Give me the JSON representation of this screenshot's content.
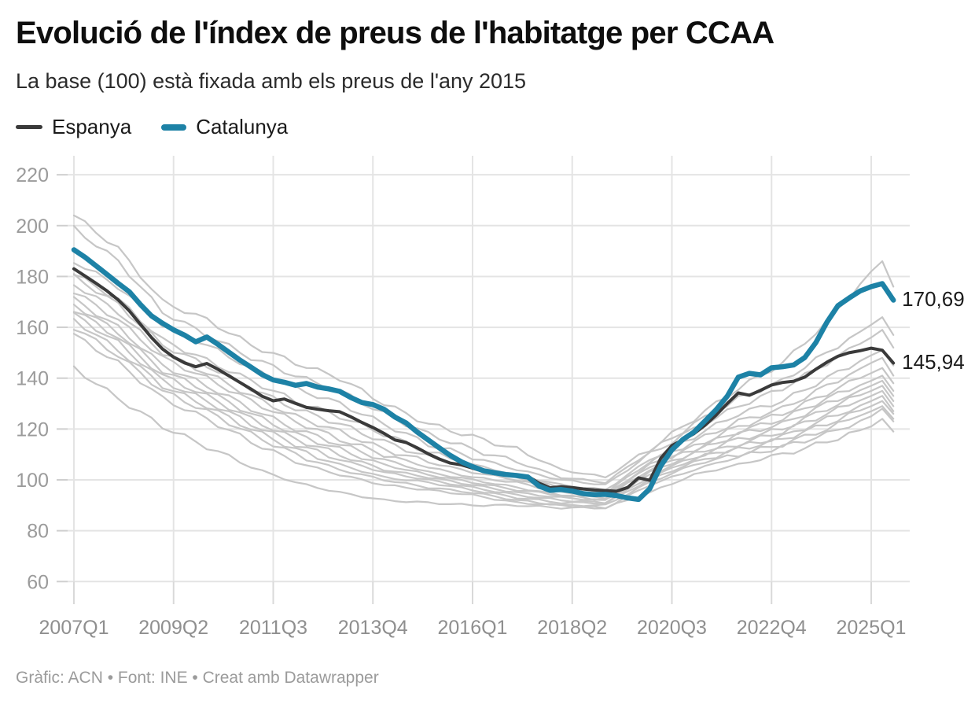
{
  "header": {
    "title": "Evolució de l'índex de preus de l'habitatge per CCAA",
    "subtitle": "La base (100) està fixada amb els preus de l'any 2015"
  },
  "legend": {
    "items": [
      {
        "label": "Espanya",
        "color": "#3a3a3a"
      },
      {
        "label": "Catalunya",
        "color": "#1d82a6"
      }
    ]
  },
  "footer": {
    "credit": "Gràfic: ACN • Font: INE • Creat amb Datawrapper"
  },
  "chart_data": {
    "type": "line",
    "x_start": "2007Q1",
    "x_end": "2025Q3",
    "frequency": "quarterly",
    "ylim": [
      55,
      225
    ],
    "grid": true,
    "y_ticks": [
      220,
      200,
      180,
      160,
      140,
      120,
      100,
      80,
      60
    ],
    "x_ticks": [
      {
        "label": "2007Q1",
        "q": 0
      },
      {
        "label": "2009Q2",
        "q": 9
      },
      {
        "label": "2011Q3",
        "q": 18
      },
      {
        "label": "2013Q4",
        "q": 27
      },
      {
        "label": "2016Q1",
        "q": 36
      },
      {
        "label": "2018Q2",
        "q": 45
      },
      {
        "label": "2020Q3",
        "q": 54
      },
      {
        "label": "2022Q4",
        "q": 63
      },
      {
        "label": "2025Q1",
        "q": 72
      }
    ],
    "series": [
      {
        "name": "Espanya",
        "color": "#3a3a3a",
        "end_label": "145,94",
        "values": [
          183.0,
          180.2,
          177.3,
          174.3,
          170.8,
          166.5,
          161.2,
          156.0,
          151.5,
          148.3,
          146.0,
          144.5,
          145.8,
          143.5,
          140.9,
          138.3,
          135.7,
          132.9,
          131.1,
          131.8,
          130.1,
          128.5,
          127.8,
          127.2,
          126.8,
          124.8,
          122.6,
          120.6,
          118.3,
          115.7,
          114.7,
          112.6,
          110.2,
          108.2,
          106.6,
          105.9,
          104.6,
          103.3,
          102.4,
          102.1,
          101.8,
          101.4,
          98.7,
          96.9,
          97.3,
          97.0,
          96.4,
          96.0,
          95.8,
          95.5,
          97.0,
          100.8,
          99.8,
          108.5,
          113.5,
          115.8,
          118.2,
          121.5,
          125.5,
          130.0,
          134.2,
          133.3,
          135.2,
          137.3,
          138.3,
          138.8,
          140.4,
          143.5,
          146.3,
          148.6,
          150.0,
          150.8,
          151.8,
          151.0,
          145.94
        ]
      },
      {
        "name": "Catalunya",
        "color": "#1d82a6",
        "end_label": "170,69",
        "values": [
          190.5,
          187.6,
          184.2,
          180.8,
          177.3,
          174.0,
          169.0,
          164.5,
          161.6,
          159.0,
          156.9,
          154.3,
          156.2,
          153.3,
          150.2,
          147.1,
          144.3,
          141.4,
          139.3,
          138.4,
          137.2,
          137.9,
          136.5,
          135.8,
          134.8,
          132.4,
          130.4,
          129.6,
          127.8,
          124.7,
          122.4,
          118.8,
          115.7,
          112.6,
          109.6,
          107.1,
          105.2,
          103.6,
          102.8,
          102.1,
          101.7,
          101.1,
          97.6,
          95.9,
          96.2,
          95.6,
          94.6,
          94.2,
          94.3,
          93.8,
          92.9,
          92.3,
          96.5,
          105.5,
          111.8,
          115.9,
          118.8,
          123.2,
          127.6,
          132.9,
          140.4,
          141.9,
          141.3,
          144.1,
          144.5,
          145.2,
          148.1,
          154.0,
          162.0,
          168.5,
          171.5,
          174.3,
          176.0,
          177.2,
          170.69
        ]
      }
    ],
    "other_ccaa_lines": {
      "note": "Unlabeled light-gray background lines (one per CCAA), values estimated from pixels",
      "color": "#c6c6c6",
      "anchor_quarters": [
        0,
        4,
        8,
        12,
        16,
        20,
        24,
        28,
        32,
        36,
        40,
        44,
        48,
        52,
        56,
        60,
        64,
        68,
        72,
        73,
        74
      ],
      "lines": [
        [
          204,
          191,
          170,
          163,
          153,
          146,
          140,
          130,
          122,
          117,
          112,
          104,
          101,
          112,
          124,
          136,
          146,
          162,
          182,
          186,
          176
        ],
        [
          199,
          186,
          166,
          157,
          148,
          141,
          135,
          126,
          118,
          112,
          107,
          101,
          99,
          111,
          122,
          132,
          139,
          150,
          161,
          164,
          157
        ],
        [
          186,
          176,
          161,
          153,
          144,
          136,
          130,
          122,
          114,
          109,
          104,
          100,
          98,
          110,
          120,
          129,
          136,
          146,
          156,
          159,
          152
        ],
        [
          181,
          171,
          155,
          147,
          139,
          131,
          125,
          118,
          111,
          106,
          102,
          98,
          96,
          108,
          117,
          126,
          131,
          140,
          149,
          151,
          145
        ],
        [
          180,
          169,
          153,
          145,
          136,
          128,
          122,
          115,
          109,
          105,
          101,
          97,
          95,
          107,
          115,
          123,
          128,
          137,
          146,
          148,
          141
        ],
        [
          177,
          166,
          150,
          142,
          133,
          125,
          119,
          112,
          107,
          103,
          100,
          96,
          94,
          106,
          113,
          121,
          126,
          134,
          142,
          144,
          138
        ],
        [
          174,
          163,
          148,
          140,
          131,
          123,
          116,
          110,
          105,
          101,
          99,
          95,
          94,
          105,
          112,
          119,
          124,
          132,
          139,
          141,
          135
        ],
        [
          171,
          160,
          145,
          137,
          128,
          120,
          114,
          108,
          103,
          100,
          97,
          94,
          93,
          104,
          111,
          118,
          122,
          130,
          137,
          139,
          133
        ],
        [
          169,
          158,
          143,
          135,
          126,
          118,
          112,
          106,
          102,
          99,
          96,
          94,
          92,
          103,
          110,
          116,
          120,
          128,
          135,
          137,
          131
        ],
        [
          167,
          156,
          141,
          133,
          124,
          116,
          110,
          104,
          101,
          98,
          95,
          93,
          92,
          102,
          109,
          114,
          119,
          126,
          133,
          135,
          129
        ],
        [
          165,
          154,
          139,
          131,
          122,
          114,
          108,
          103,
          100,
          97,
          94,
          92,
          91,
          101,
          108,
          113,
          117,
          124,
          131,
          133,
          127
        ],
        [
          163,
          151,
          137,
          129,
          120,
          112,
          106,
          101,
          99,
          96,
          93,
          91,
          91,
          100,
          107,
          112,
          116,
          122,
          129,
          131,
          126
        ],
        [
          160,
          149,
          135,
          127,
          118,
          110,
          104,
          100,
          97,
          95,
          92,
          90,
          90,
          99,
          106,
          110,
          114,
          120,
          127,
          129,
          124
        ],
        [
          157,
          146,
          132,
          124,
          115,
          107,
          102,
          98,
          96,
          94,
          91,
          90,
          89,
          98,
          104,
          109,
          113,
          118,
          125,
          128,
          123
        ],
        [
          144,
          132,
          121,
          113,
          105,
          99,
          95,
          92,
          91,
          90,
          90,
          89,
          89,
          95,
          102,
          106,
          110,
          115,
          121,
          124,
          119
        ]
      ]
    }
  }
}
